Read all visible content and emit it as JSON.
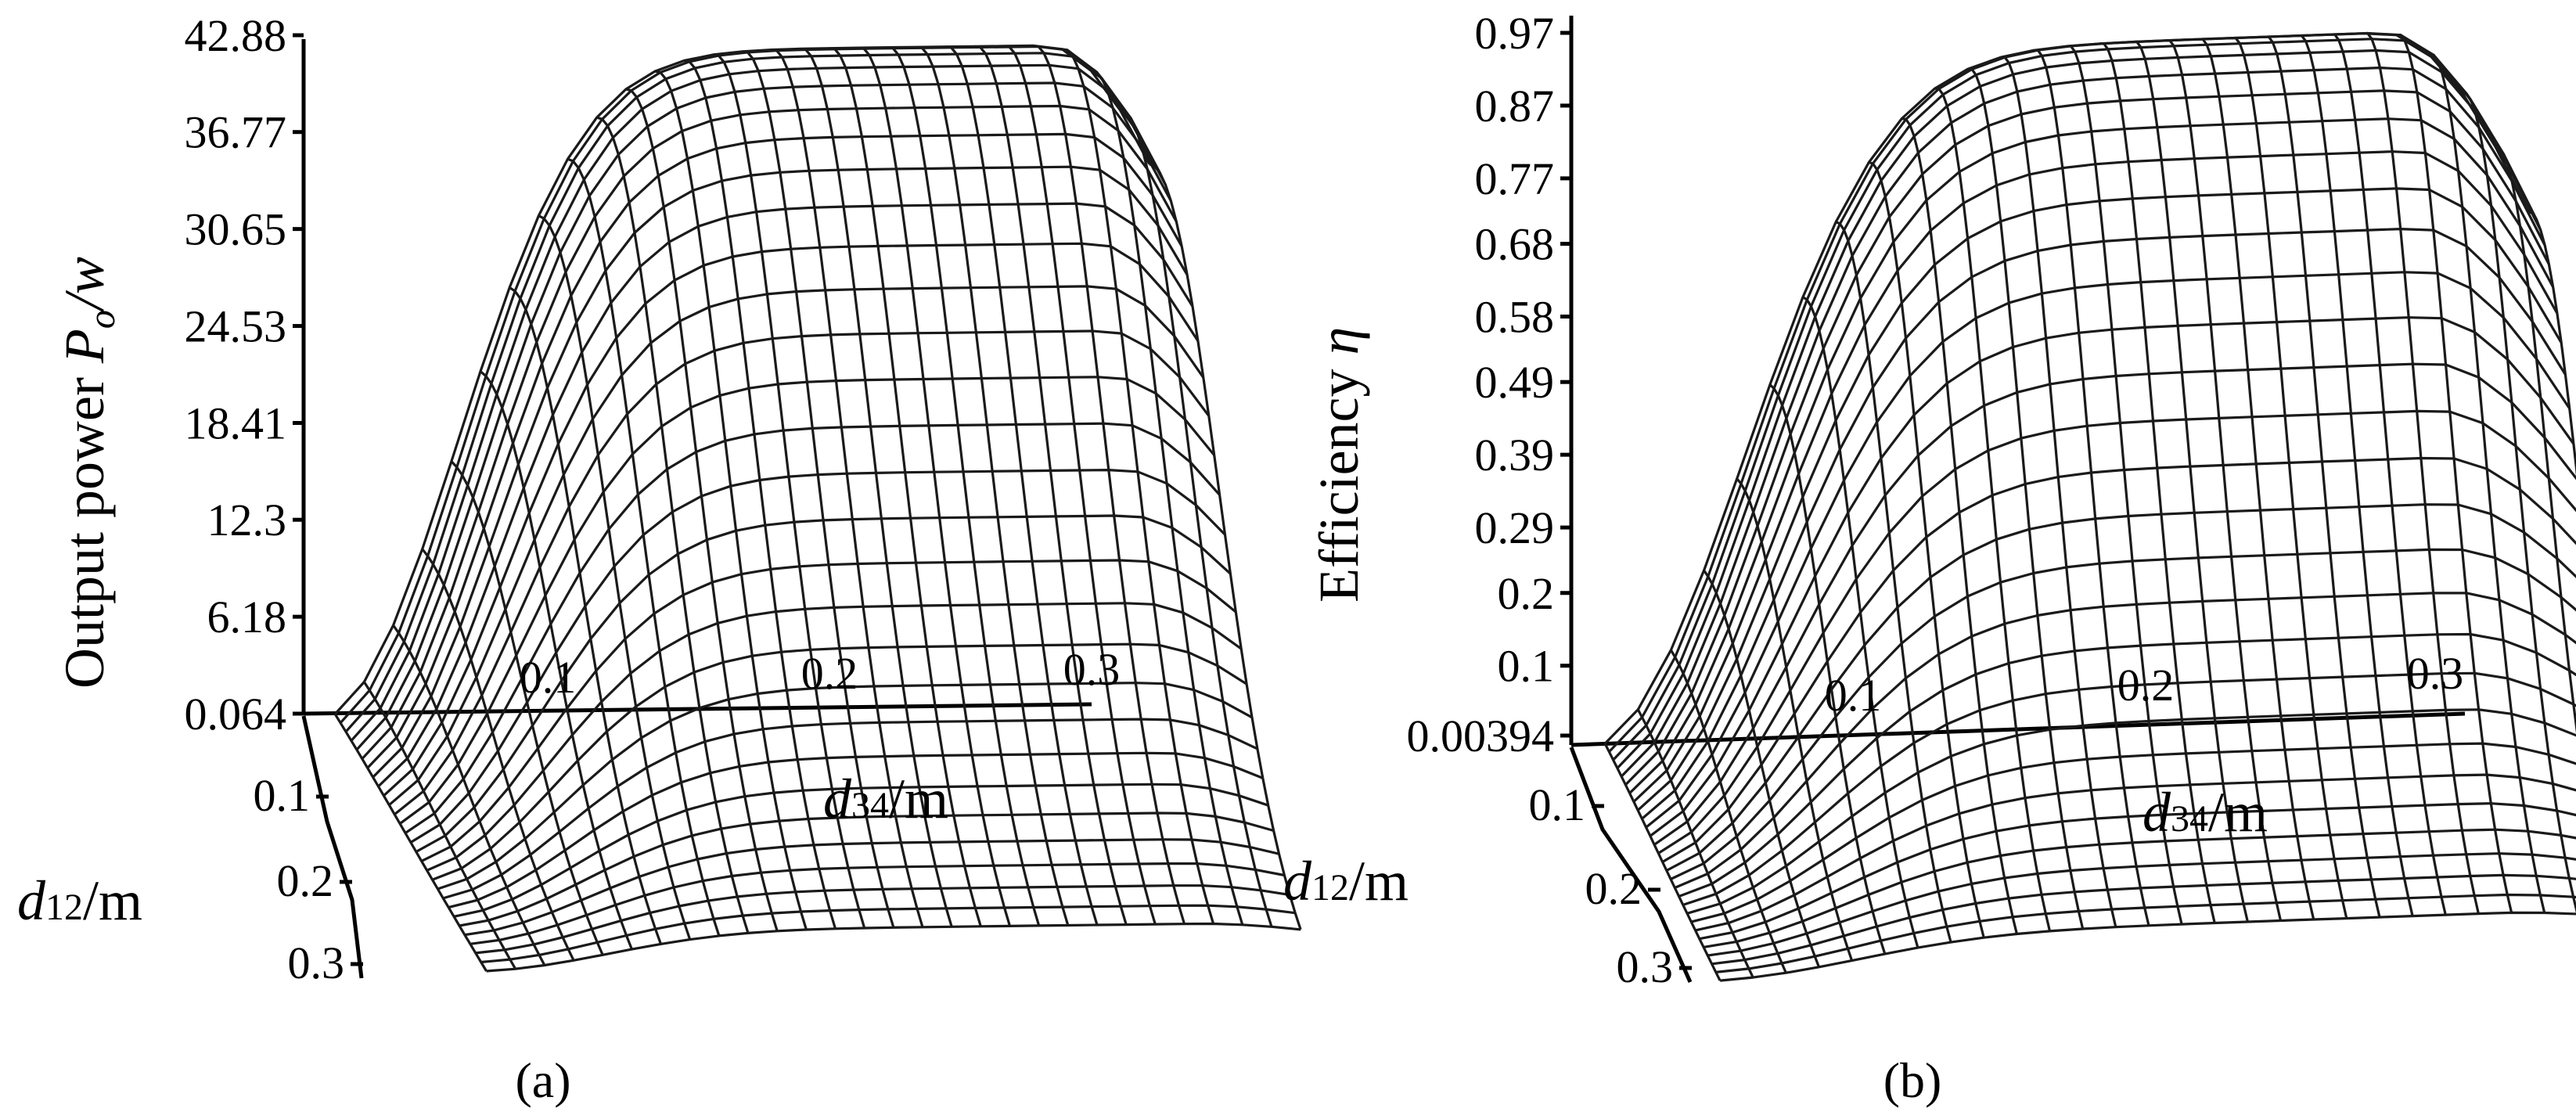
{
  "chart_data": [
    {
      "panel_label": "(a)",
      "type": "surface",
      "z_ticks": [
        "42.88",
        "36.77",
        "30.65",
        "24.53",
        "18.41",
        "12.3",
        "6.18",
        "0.064"
      ],
      "x_ticks": [
        "0.1",
        "0.2",
        "0.3"
      ],
      "y_ticks": [
        "0.1",
        "0.2",
        "0.3"
      ],
      "zlim": [
        0.064,
        42.88
      ],
      "xlim": [
        0,
        0.3
      ],
      "ylim": [
        0,
        0.3
      ],
      "z_title_text": "Output power ",
      "z_title_symbol": "P",
      "z_title_sub": "o",
      "z_title_unit": "/w",
      "x_title_var": "d",
      "x_title_sub": "34",
      "x_title_unit": "/m",
      "y_title_var": "d",
      "y_title_sub": "12",
      "y_title_unit": "/m",
      "peak": {
        "d34": 0.28,
        "d12": 0.05,
        "value": 42.88
      }
    },
    {
      "panel_label": "(b)",
      "type": "surface",
      "z_ticks": [
        "0.97",
        "0.87",
        "0.77",
        "0.68",
        "0.58",
        "0.49",
        "0.39",
        "0.29",
        "0.2",
        "0.1",
        "0.00394"
      ],
      "x_ticks": [
        "0.1",
        "0.2",
        "0.3"
      ],
      "y_ticks": [
        "0.1",
        "0.2",
        "0.3"
      ],
      "zlim": [
        0.00394,
        0.97
      ],
      "xlim": [
        0,
        0.3
      ],
      "ylim": [
        0,
        0.3
      ],
      "z_title_text": "Efficiency ",
      "z_title_symbol": "η",
      "z_title_sub": "",
      "z_title_unit": "",
      "x_title_var": "d",
      "x_title_sub": "34",
      "x_title_unit": "/m",
      "y_title_var": "d",
      "y_title_sub": "12",
      "y_title_unit": "/m",
      "peak": {
        "d34": 0.27,
        "d12": 0.05,
        "value": 0.97
      }
    }
  ]
}
